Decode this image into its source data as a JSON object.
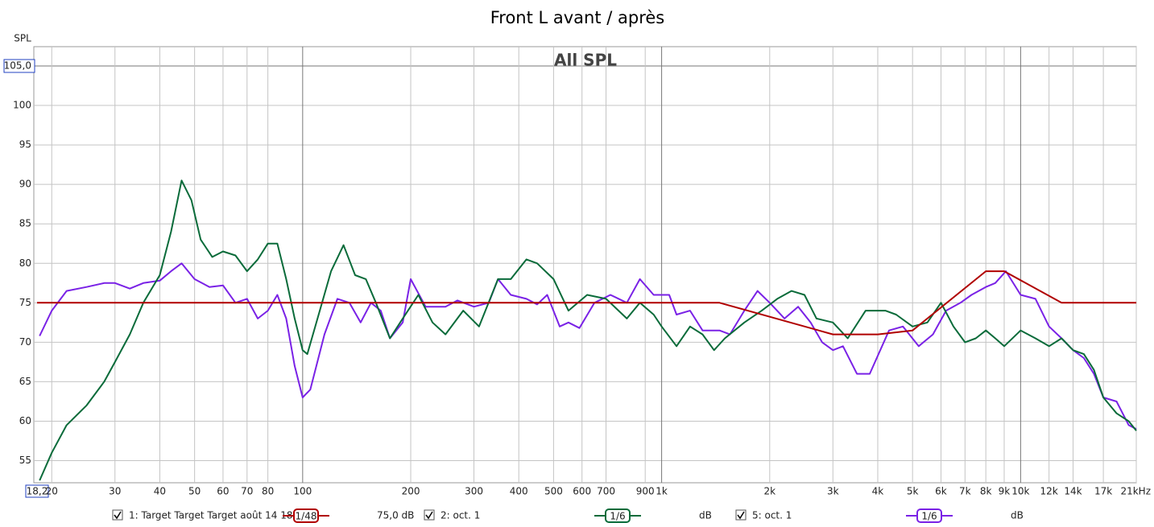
{
  "chart_data": {
    "type": "line",
    "title": "Front L avant / après",
    "y_label": "SPL",
    "annotation": "All SPL",
    "log_x": true,
    "grid": true,
    "xlim": [
      18.2,
      21000
    ],
    "ylim": [
      52.2,
      105
    ],
    "xticks": [
      {
        "value": 18.2,
        "label": "18,2"
      },
      20,
      30,
      40,
      50,
      60,
      70,
      80,
      100,
      200,
      300,
      400,
      500,
      600,
      700,
      900,
      {
        "value": 1000,
        "label": "1k"
      },
      {
        "value": 2000,
        "label": "2k"
      },
      {
        "value": 3000,
        "label": "3k"
      },
      {
        "value": 4000,
        "label": "4k"
      },
      {
        "value": 5000,
        "label": "5k"
      },
      {
        "value": 6000,
        "label": "6k"
      },
      {
        "value": 7000,
        "label": "7k"
      },
      {
        "value": 8000,
        "label": "8k"
      },
      {
        "value": 9000,
        "label": "9k"
      },
      {
        "value": 10000,
        "label": "10k"
      },
      {
        "value": 12000,
        "label": "12k"
      },
      {
        "value": 14000,
        "label": "14k"
      },
      {
        "value": 17000,
        "label": "17k"
      },
      {
        "value": 21000,
        "label": "21kHz"
      }
    ],
    "yticks": [
      {
        "value": 105,
        "label": "105,0"
      },
      100,
      95,
      90,
      85,
      80,
      75,
      70,
      65,
      60,
      55
    ],
    "series": [
      {
        "name": "1: Target Target Target août 14 18:",
        "color": "#b00000",
        "smoothing": "1/48",
        "offset": "75,0 dB",
        "x": [
          18.2,
          1450,
          3000,
          4000,
          5000,
          8000,
          9000,
          13000,
          21000
        ],
        "values": [
          75,
          75,
          71,
          71,
          71.5,
          79,
          79,
          75,
          75
        ]
      },
      {
        "name": "2: oct. 1",
        "color": "#0a6b3a",
        "smoothing": "1/6",
        "offset": "dB",
        "x": [
          18.5,
          20,
          22,
          25,
          28,
          30,
          33,
          36,
          40,
          43,
          46,
          49,
          52,
          56,
          60,
          65,
          70,
          75,
          80,
          85,
          90,
          95,
          100,
          103,
          110,
          120,
          130,
          140,
          150,
          160,
          175,
          190,
          210,
          230,
          250,
          280,
          310,
          350,
          380,
          420,
          450,
          500,
          550,
          620,
          700,
          800,
          870,
          950,
          1000,
          1100,
          1200,
          1300,
          1400,
          1500,
          1700,
          1900,
          2100,
          2300,
          2500,
          2700,
          3000,
          3300,
          3700,
          4200,
          4500,
          5000,
          5500,
          6000,
          6500,
          7000,
          7500,
          8000,
          8500,
          9000,
          10000,
          11000,
          12000,
          13000,
          14000,
          15000,
          16000,
          17000,
          18500,
          20000,
          21000
        ],
        "values": [
          52.5,
          56,
          59.5,
          62,
          65,
          67.5,
          71,
          75,
          78.5,
          84,
          90.5,
          88,
          83,
          80.8,
          81.5,
          81,
          79,
          80.5,
          82.5,
          82.5,
          78,
          73,
          69,
          68.5,
          73,
          79,
          82.3,
          78.5,
          78,
          75,
          70.5,
          73,
          76,
          72.5,
          71,
          74,
          72,
          78,
          78,
          80.5,
          80,
          78,
          74,
          76,
          75.5,
          73,
          75,
          73.5,
          72,
          69.5,
          72,
          71,
          69,
          70.5,
          72.5,
          74,
          75.5,
          76.5,
          76,
          73,
          72.5,
          70.5,
          74,
          74,
          73.5,
          72,
          72.5,
          75,
          72,
          70,
          70.5,
          71.5,
          70.5,
          69.5,
          71.5,
          70.5,
          69.5,
          70.5,
          69,
          68.5,
          66.5,
          63,
          61,
          60,
          58.8
        ]
      },
      {
        "name": "5: oct. 1",
        "color": "#7a22e6",
        "smoothing": "1/6",
        "offset": "dB",
        "x": [
          18.5,
          20,
          22,
          25,
          28,
          30,
          33,
          36,
          40,
          43,
          46,
          50,
          55,
          60,
          65,
          70,
          75,
          80,
          85,
          90,
          95,
          100,
          105,
          115,
          125,
          135,
          145,
          155,
          165,
          175,
          190,
          200,
          220,
          250,
          270,
          300,
          330,
          350,
          380,
          420,
          450,
          480,
          520,
          550,
          590,
          650,
          720,
          800,
          870,
          950,
          1050,
          1100,
          1200,
          1300,
          1450,
          1550,
          1700,
          1850,
          2000,
          2200,
          2400,
          2600,
          2800,
          3000,
          3200,
          3500,
          3800,
          4300,
          4700,
          5200,
          5700,
          6200,
          6800,
          7300,
          8000,
          8500,
          9100,
          10000,
          11000,
          12000,
          13000,
          14000,
          15000,
          16000,
          17000,
          18500,
          20000,
          21000
        ],
        "values": [
          70.8,
          74,
          76.5,
          77,
          77.5,
          77.5,
          76.8,
          77.5,
          77.8,
          79,
          80,
          78,
          77,
          77.2,
          75,
          75.5,
          73,
          74,
          76,
          73,
          67,
          63,
          64,
          71,
          75.5,
          75,
          72.5,
          75,
          74,
          70.5,
          72.5,
          78,
          74.5,
          74.5,
          75.3,
          74.5,
          75,
          78,
          76,
          75.5,
          74.8,
          76,
          72,
          72.5,
          71.8,
          75,
          76,
          75,
          78,
          76,
          76,
          73.5,
          74,
          71.5,
          71.5,
          71,
          74,
          76.5,
          75,
          73,
          74.5,
          72.5,
          70,
          69,
          69.5,
          66,
          66,
          71.5,
          72,
          69.5,
          71,
          74,
          75,
          76,
          77,
          77.5,
          79,
          76,
          75.5,
          72,
          70.5,
          69,
          68,
          66,
          63,
          62.5,
          59.5,
          59
        ]
      }
    ]
  }
}
